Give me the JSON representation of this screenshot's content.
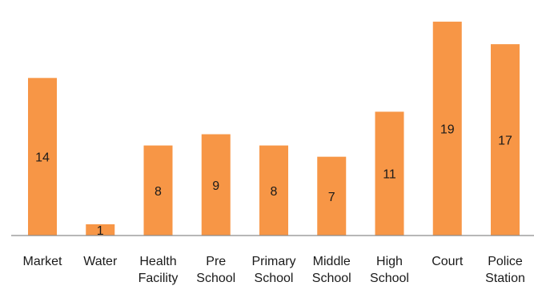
{
  "chart_data": {
    "type": "bar",
    "title": "",
    "xlabel": "",
    "ylabel": "",
    "categories": [
      [
        "Market"
      ],
      [
        "Water"
      ],
      [
        "Health",
        "Facility"
      ],
      [
        "Pre",
        "School"
      ],
      [
        "Primary",
        "School"
      ],
      [
        "Middle",
        "School"
      ],
      [
        "High",
        "School"
      ],
      [
        "Court"
      ],
      [
        "Police",
        "Station"
      ]
    ],
    "values": [
      14,
      1,
      8,
      9,
      8,
      7,
      11,
      19,
      17
    ],
    "ylim": [
      0,
      20
    ],
    "grid": false,
    "legend": "none",
    "colors": {
      "bar": "#F79646",
      "axis": "#8C8C8C",
      "text": "#1A1A1A"
    }
  }
}
